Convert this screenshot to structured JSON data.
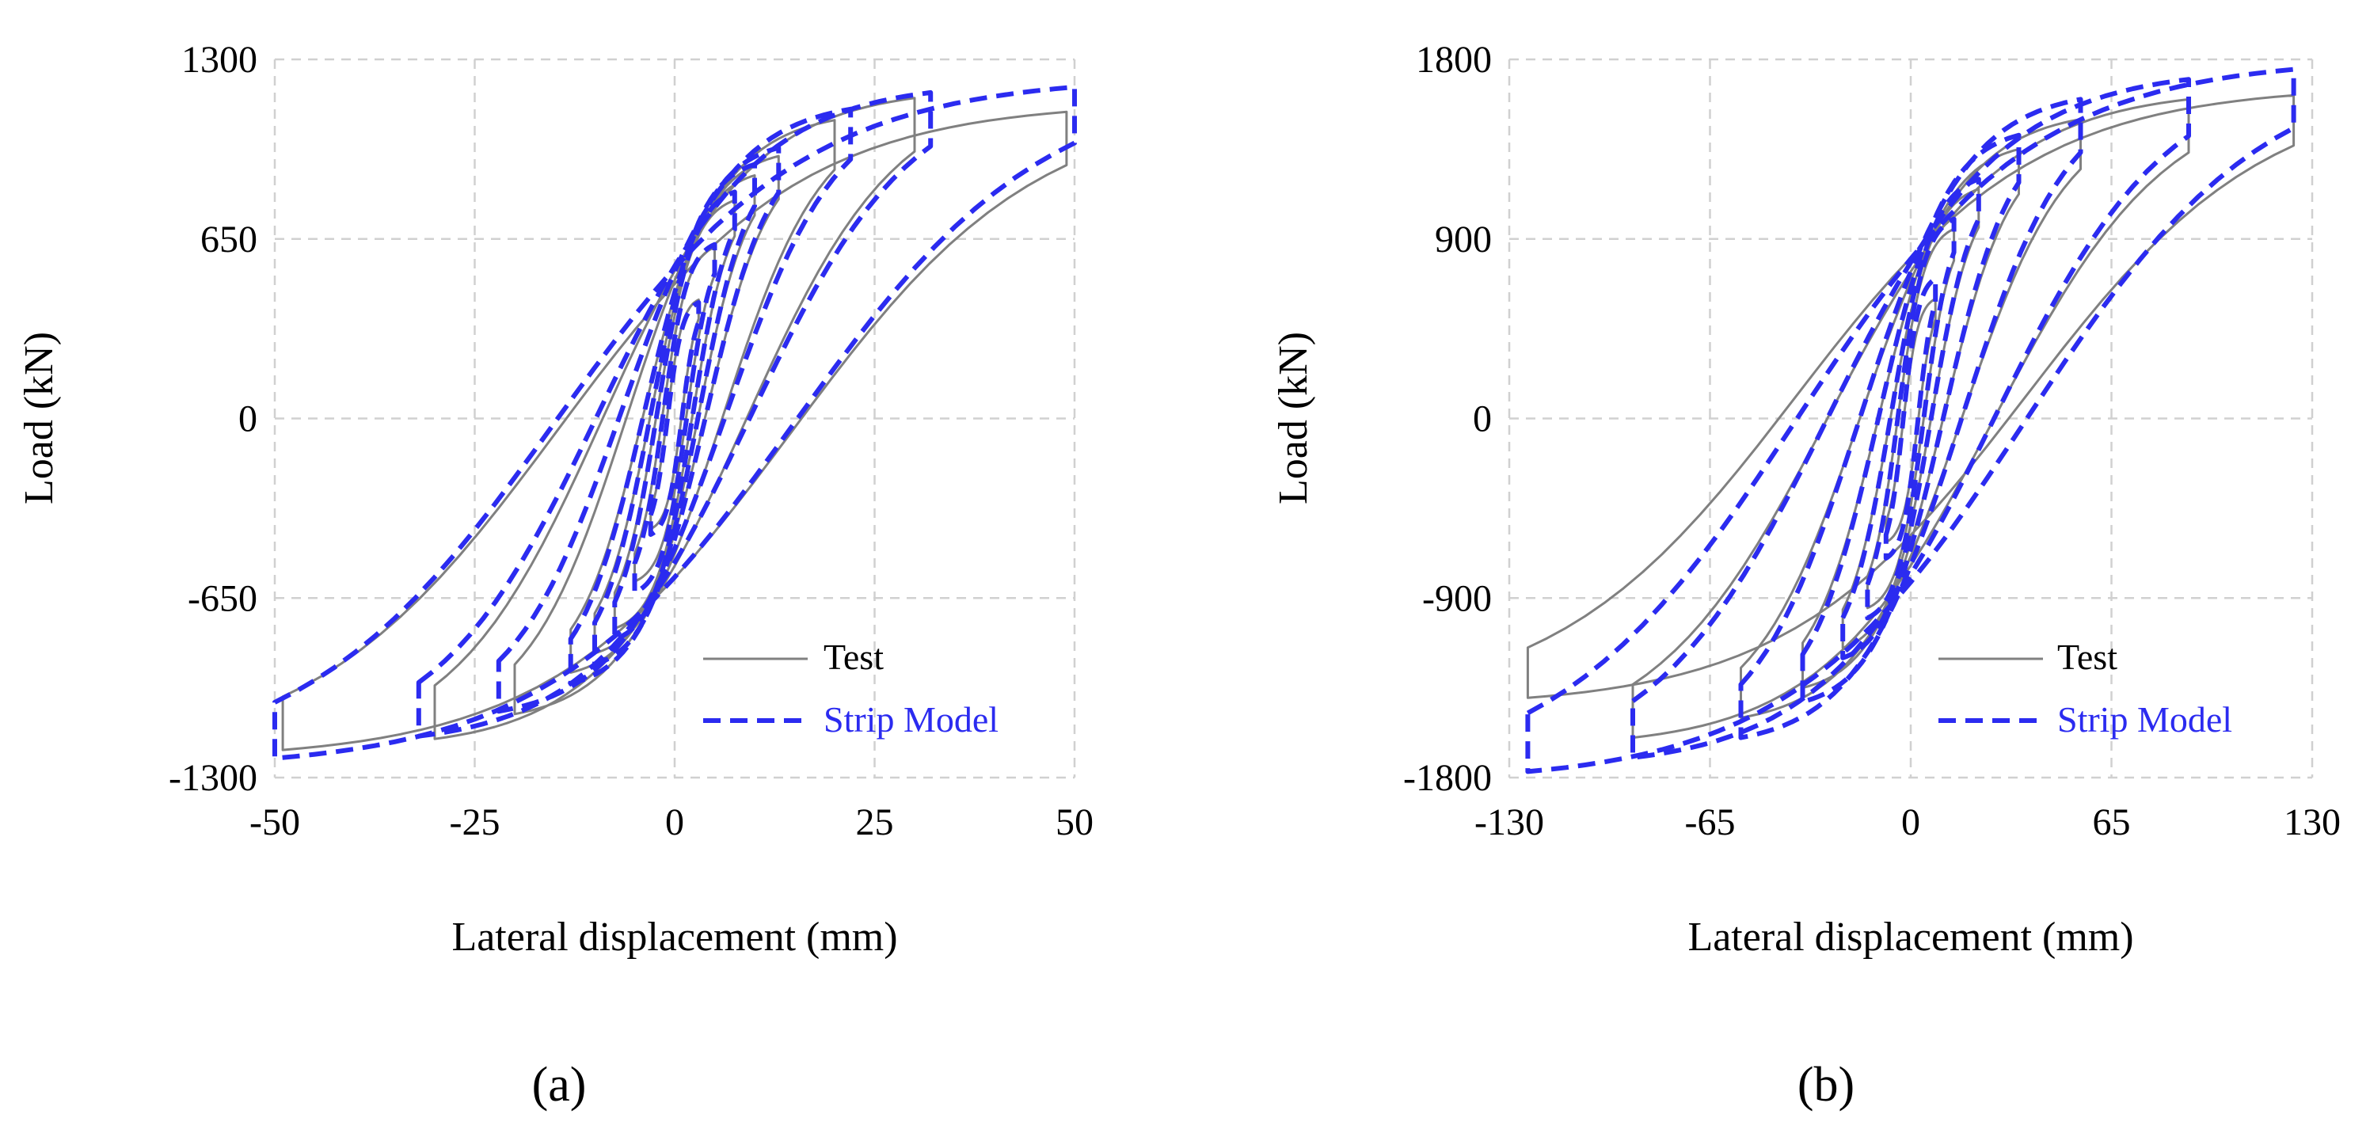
{
  "figure": {
    "panel_labels": [
      "(a)",
      "(b)"
    ],
    "colors": {
      "test": "#808080",
      "model": "#2b2bf0",
      "grid": "#d0d0d0"
    }
  },
  "chart_data": [
    {
      "type": "line",
      "panel": "(a)",
      "xlabel": "Lateral displacement (mm)",
      "ylabel": "Load (kN)",
      "xlim": [
        -50,
        50
      ],
      "ylim": [
        -1300,
        1300
      ],
      "xticks": [
        -50,
        -25,
        0,
        25,
        50
      ],
      "yticks": [
        -1300,
        -650,
        0,
        650,
        1300
      ],
      "xtick_labels": [
        "-50",
        "-25",
        "0",
        "25",
        "50"
      ],
      "ytick_labels": [
        "-1300",
        "-650",
        "0",
        "650",
        "1300"
      ],
      "grid": true,
      "legend": {
        "position": "bottom-right",
        "entries": [
          "Test",
          "Strip Model"
        ]
      },
      "cycle_peaks": {
        "Test": [
          {
            "d": 3,
            "fp": 430,
            "fn": -400,
            "yp": 120,
            "yn": -110
          },
          {
            "d": 5,
            "fp": 620,
            "fn": -590,
            "yp": 200,
            "yn": -190
          },
          {
            "d": 7.5,
            "fp": 790,
            "fn": -760,
            "yp": 260,
            "yn": -250
          },
          {
            "d": 10,
            "fp": 880,
            "fn": -850,
            "yp": 330,
            "yn": -320
          },
          {
            "d": 13,
            "fp": 950,
            "fn": -920,
            "yp": 380,
            "yn": -380
          },
          {
            "d": 20,
            "fp": 1080,
            "fn": -1070,
            "yp": 470,
            "yn": -500
          },
          {
            "d": 30,
            "fp": 1160,
            "fn": -1160,
            "yp": 560,
            "yn": -560
          },
          {
            "d": 49,
            "fp": 1110,
            "fn": -1200,
            "yp": 620,
            "yn": -600
          }
        ],
        "Strip Model": [
          {
            "d": 3,
            "fp": 420,
            "fn": -420,
            "yp": 90,
            "yn": -90
          },
          {
            "d": 5,
            "fp": 630,
            "fn": -630,
            "yp": 150,
            "yn": -150
          },
          {
            "d": 7.5,
            "fp": 820,
            "fn": -800,
            "yp": 210,
            "yn": -210
          },
          {
            "d": 10,
            "fp": 920,
            "fn": -890,
            "yp": 280,
            "yn": -280
          },
          {
            "d": 13,
            "fp": 980,
            "fn": -960,
            "yp": 330,
            "yn": -330
          },
          {
            "d": 22,
            "fp": 1120,
            "fn": -1060,
            "yp": 470,
            "yn": -480
          },
          {
            "d": 32,
            "fp": 1180,
            "fn": -1150,
            "yp": 560,
            "yn": -560
          },
          {
            "d": 50,
            "fp": 1200,
            "fn": -1230,
            "yp": 660,
            "yn": -680
          }
        ]
      }
    },
    {
      "type": "line",
      "panel": "(b)",
      "xlabel": "Lateral displacement (mm)",
      "ylabel": "Load (kN)",
      "xlim": [
        -130,
        130
      ],
      "ylim": [
        -1800,
        1800
      ],
      "xticks": [
        -130,
        -65,
        0,
        65,
        130
      ],
      "yticks": [
        -1800,
        -900,
        0,
        900,
        1800
      ],
      "xtick_labels": [
        "-130",
        "-65",
        "0",
        "65",
        "130"
      ],
      "ytick_labels": [
        "-1800",
        "-900",
        "0",
        "900",
        "1800"
      ],
      "grid": true,
      "legend": {
        "position": "bottom-right",
        "entries": [
          "Test",
          "Strip Model"
        ]
      },
      "cycle_peaks": {
        "Test": [
          {
            "d": 8,
            "fp": 600,
            "fn": -620,
            "yp": 200,
            "yn": -200
          },
          {
            "d": 14,
            "fp": 950,
            "fn": -950,
            "yp": 300,
            "yn": -300
          },
          {
            "d": 22,
            "fp": 1150,
            "fn": -1150,
            "yp": 400,
            "yn": -420
          },
          {
            "d": 35,
            "fp": 1350,
            "fn": -1350,
            "yp": 520,
            "yn": -560
          },
          {
            "d": 55,
            "fp": 1500,
            "fn": -1500,
            "yp": 650,
            "yn": -700
          },
          {
            "d": 90,
            "fp": 1600,
            "fn": -1600,
            "yp": 800,
            "yn": -850
          },
          {
            "d": 124,
            "fp": 1620,
            "fn": -1400,
            "yp": 900,
            "yn": -950
          }
        ],
        "Strip Model": [
          {
            "d": 8,
            "fp": 700,
            "fn": -700,
            "yp": 150,
            "yn": -150
          },
          {
            "d": 14,
            "fp": 1000,
            "fn": -1000,
            "yp": 260,
            "yn": -260
          },
          {
            "d": 22,
            "fp": 1200,
            "fn": -1200,
            "yp": 380,
            "yn": -380
          },
          {
            "d": 35,
            "fp": 1420,
            "fn": -1420,
            "yp": 500,
            "yn": -500
          },
          {
            "d": 55,
            "fp": 1600,
            "fn": -1600,
            "yp": 650,
            "yn": -650
          },
          {
            "d": 90,
            "fp": 1700,
            "fn": -1700,
            "yp": 800,
            "yn": -800
          },
          {
            "d": 124,
            "fp": 1750,
            "fn": -1770,
            "yp": 900,
            "yn": -900
          }
        ]
      }
    }
  ]
}
